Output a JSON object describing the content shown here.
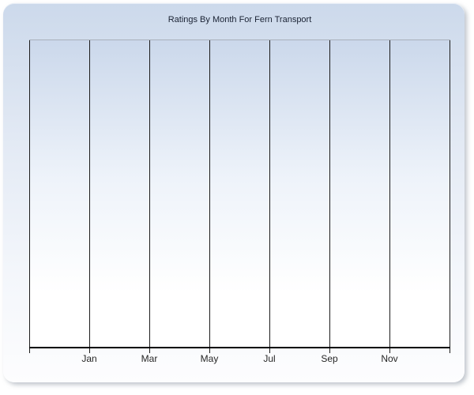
{
  "chart_data": {
    "type": "line",
    "title": "Ratings By Month For Fern Transport",
    "categories": [
      "Jan",
      "Mar",
      "May",
      "Jul",
      "Sep",
      "Nov"
    ],
    "series": [],
    "xlabel": "",
    "ylabel": "",
    "x_axis": {
      "tick_labels": [
        "Jan",
        "Mar",
        "May",
        "Jul",
        "Sep",
        "Nov"
      ],
      "gridlines": "vertical lines at every labeled month plus unlabeled left and right plot edges"
    },
    "y_axis": {
      "tick_labels": [],
      "visible": false
    },
    "legend": "none",
    "grid": "vertical-only",
    "notes": "Plot area is empty: no data points, bars or lines are rendered."
  },
  "colors": {
    "panel_top": "#ccd9eb",
    "panel_bottom": "#fdfdfe",
    "plot_top": "#cbd8eb",
    "plot_mid": "#eef3fa",
    "plot_bottom": "#ffffff",
    "gridline": "#1c1c1c",
    "axis_line": "#000000",
    "plot_top_border": "#a9b0bb",
    "title_text": "#1a2233",
    "tick_label_text": "#262626",
    "shadow": "rgba(150,158,170,0.6)"
  }
}
